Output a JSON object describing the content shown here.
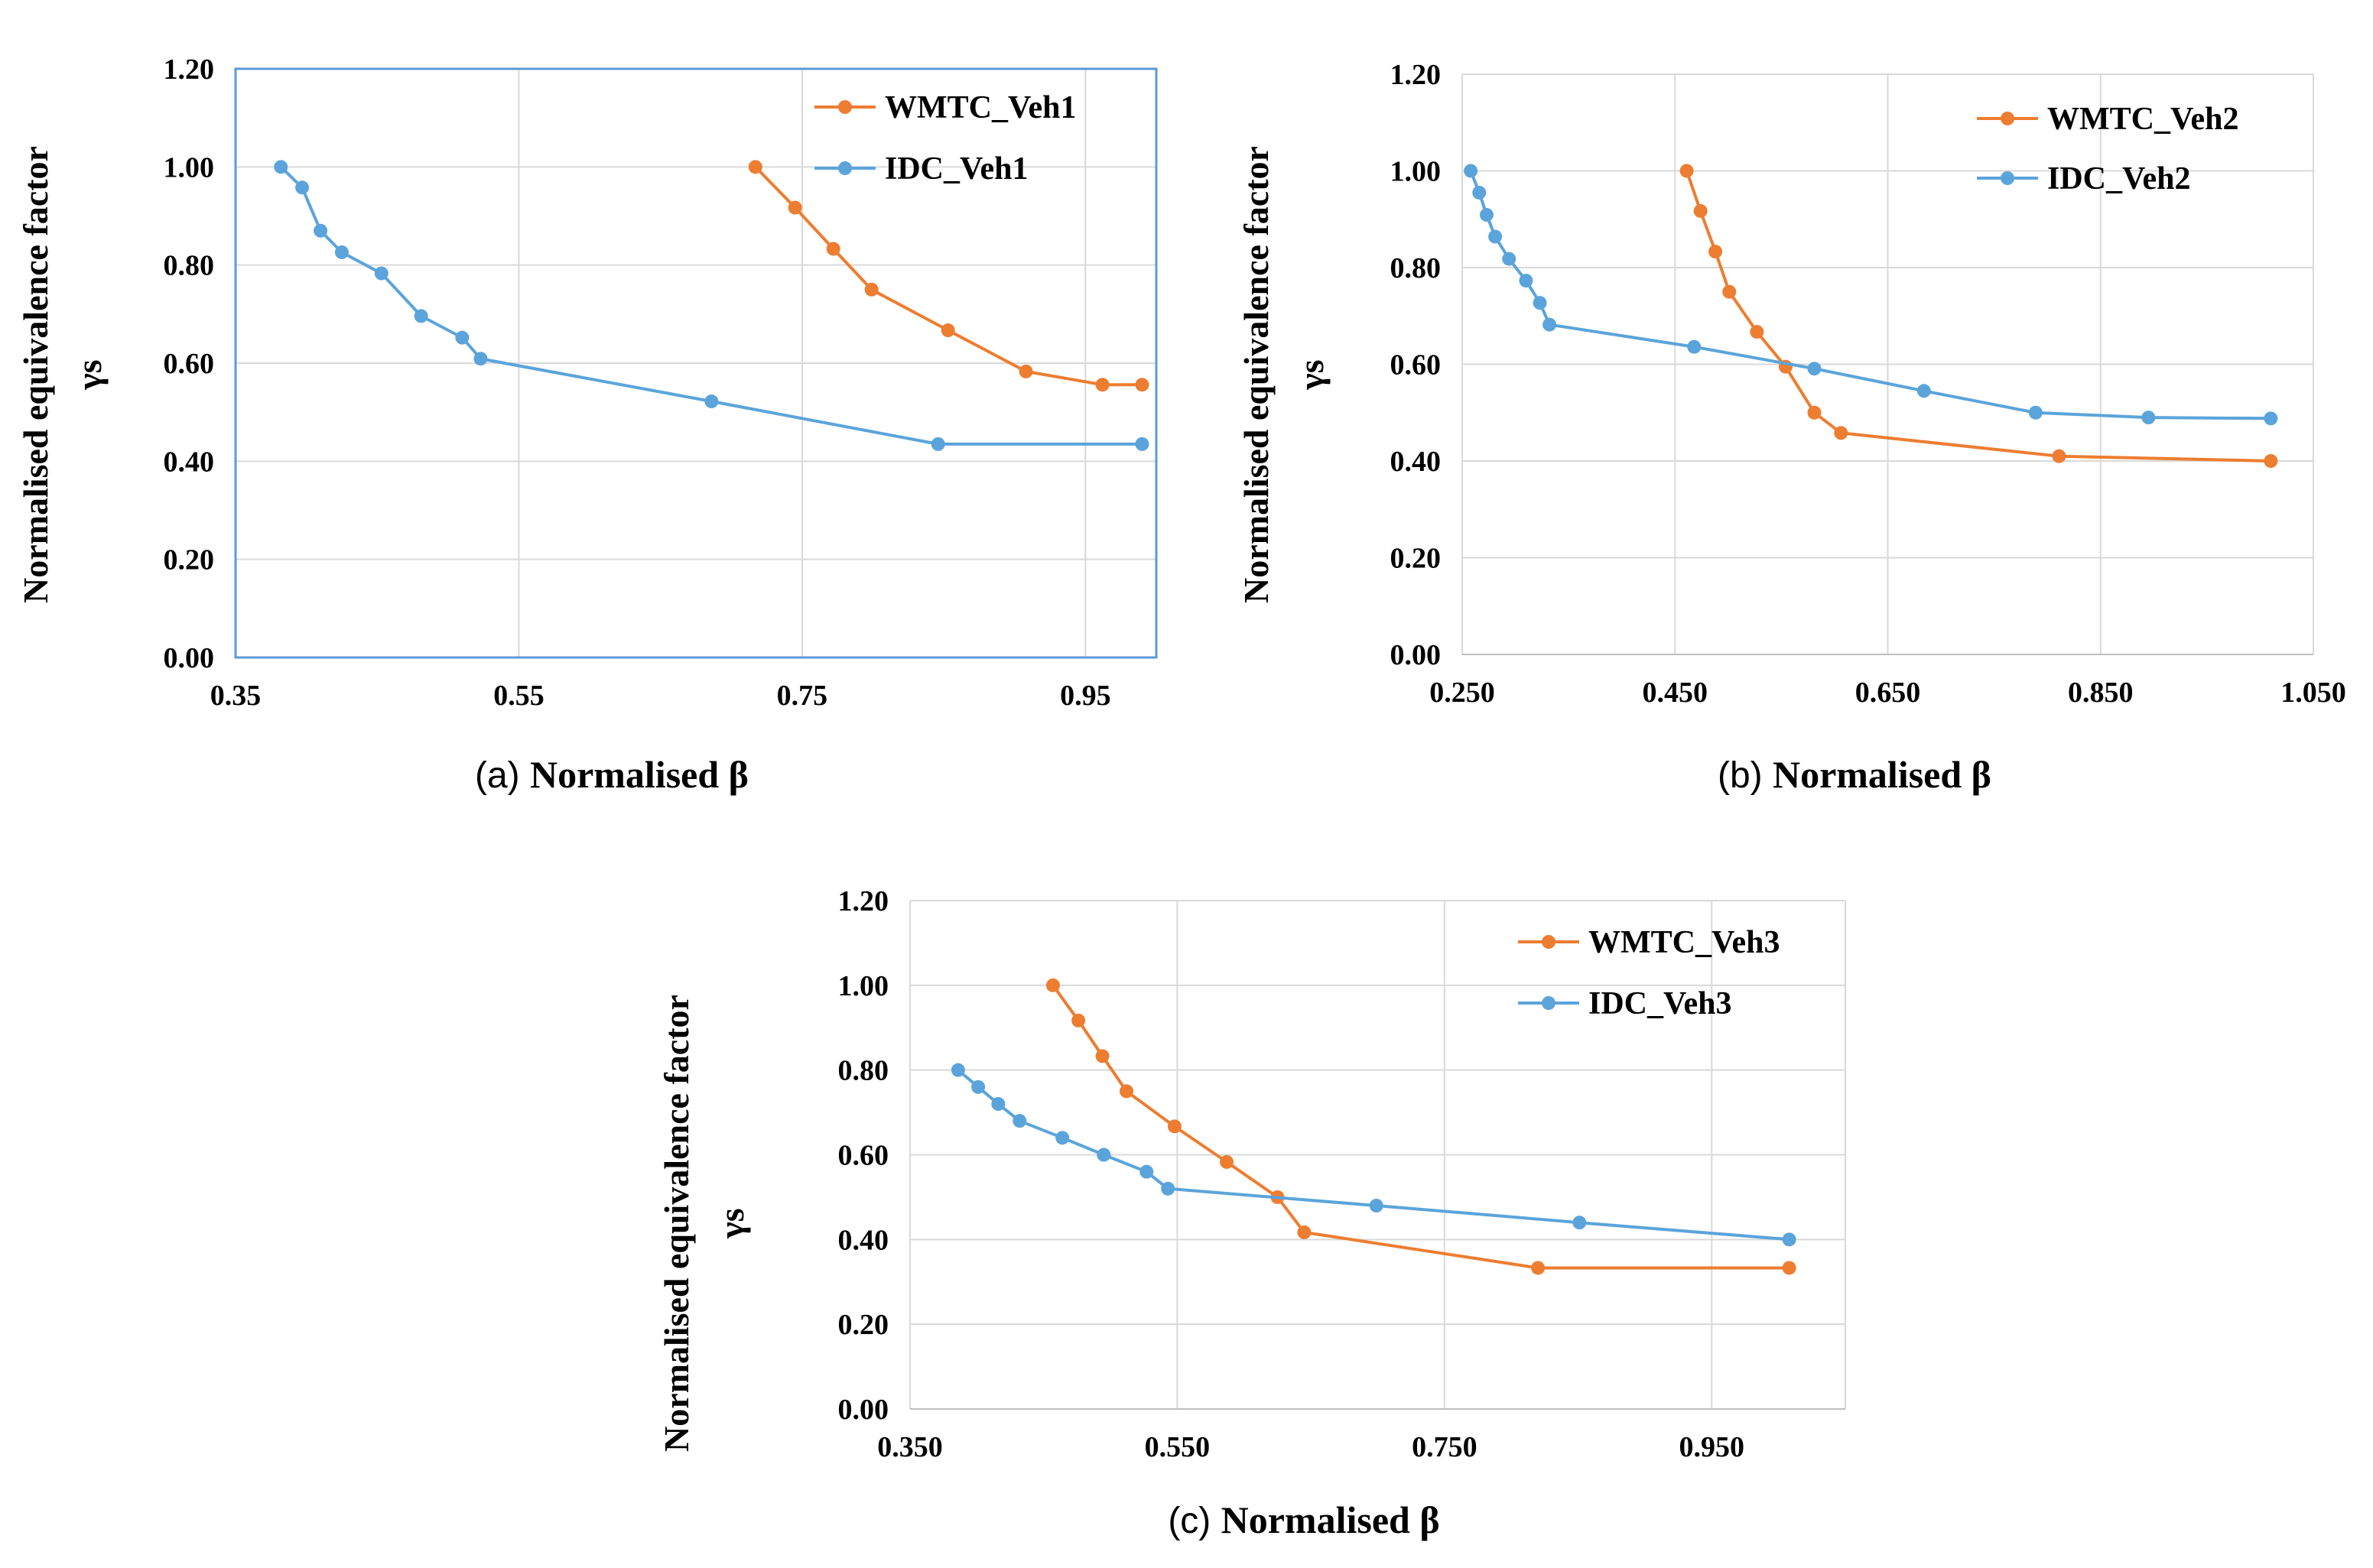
{
  "colors": {
    "wmtc": "#ED7D31",
    "idc": "#5BA4DB",
    "frame": "#5B9BD5",
    "grid": "#D9D9D9"
  },
  "chart_data": [
    {
      "type": "line",
      "panel": "(a)",
      "xlabel": "Normalised β",
      "ylabel_line1": "Normalised equivalence factor",
      "ylabel_line2": "γs",
      "xlim": [
        0.35,
        1.0
      ],
      "ylim": [
        0.0,
        1.2
      ],
      "xticks": [
        0.35,
        0.55,
        0.75,
        0.95
      ],
      "xtick_labels": [
        "0.35",
        "0.55",
        "0.75",
        "0.95"
      ],
      "yticks": [
        0.0,
        0.2,
        0.4,
        0.6,
        0.8,
        1.0,
        1.2
      ],
      "ytick_labels": [
        "0.00",
        "0.20",
        "0.40",
        "0.60",
        "0.80",
        "1.00",
        "1.20"
      ],
      "legend_position": "top-right",
      "series": [
        {
          "name": "WMTC_Veh1",
          "color": "#ED7D31",
          "x": [
            0.717,
            0.745,
            0.772,
            0.799,
            0.853,
            0.908,
            0.962,
            0.99
          ],
          "y": [
            1.0,
            0.917,
            0.833,
            0.75,
            0.667,
            0.583,
            0.556,
            0.556
          ]
        },
        {
          "name": "IDC_Veh1",
          "color": "#5BA4DB",
          "x": [
            0.382,
            0.397,
            0.41,
            0.425,
            0.453,
            0.481,
            0.51,
            0.523,
            0.686,
            0.846,
            0.99
          ],
          "y": [
            1.0,
            0.958,
            0.87,
            0.826,
            0.783,
            0.696,
            0.652,
            0.609,
            0.522,
            0.435,
            0.435
          ]
        }
      ]
    },
    {
      "type": "line",
      "panel": "(b)",
      "xlabel": "Normalised β",
      "ylabel_line1": "Normalised equivalence factor",
      "ylabel_line2": "γs",
      "xlim": [
        0.25,
        1.05
      ],
      "ylim": [
        0.0,
        1.2
      ],
      "xticks": [
        0.25,
        0.45,
        0.65,
        0.85,
        1.05
      ],
      "xtick_labels": [
        "0.250",
        "0.450",
        "0.650",
        "0.850",
        "1.050"
      ],
      "yticks": [
        0.0,
        0.2,
        0.4,
        0.6,
        0.8,
        1.0,
        1.2
      ],
      "ytick_labels": [
        "0.00",
        "0.20",
        "0.40",
        "0.60",
        "0.80",
        "1.00",
        "1.20"
      ],
      "legend_position": "top-right",
      "series": [
        {
          "name": "WMTC_Veh2",
          "color": "#ED7D31",
          "x": [
            0.461,
            0.474,
            0.488,
            0.501,
            0.527,
            0.554,
            0.581,
            0.606,
            0.811,
            1.01
          ],
          "y": [
            1.0,
            0.917,
            0.833,
            0.75,
            0.667,
            0.595,
            0.5,
            0.458,
            0.41,
            0.4
          ]
        },
        {
          "name": "IDC_Veh2",
          "color": "#5BA4DB",
          "x": [
            0.258,
            0.266,
            0.273,
            0.281,
            0.294,
            0.31,
            0.323,
            0.332,
            0.468,
            0.581,
            0.684,
            0.789,
            0.895,
            1.01
          ],
          "y": [
            1.0,
            0.955,
            0.909,
            0.864,
            0.818,
            0.773,
            0.727,
            0.682,
            0.636,
            0.591,
            0.545,
            0.5,
            0.49,
            0.488
          ]
        }
      ]
    },
    {
      "type": "line",
      "panel": "(c)",
      "xlabel": "Normalised β",
      "ylabel_line1": "Normalised equivalence factor",
      "ylabel_line2": "γs",
      "xlim": [
        0.35,
        1.05
      ],
      "ylim": [
        0.0,
        1.2
      ],
      "xticks": [
        0.35,
        0.55,
        0.75,
        0.95
      ],
      "xtick_labels": [
        "0.350",
        "0.550",
        "0.750",
        "0.950"
      ],
      "yticks": [
        0.0,
        0.2,
        0.4,
        0.6,
        0.8,
        1.0,
        1.2
      ],
      "ytick_labels": [
        "0.00",
        "0.20",
        "0.40",
        "0.60",
        "0.80",
        "1.00",
        "1.20"
      ],
      "legend_position": "top-right",
      "series": [
        {
          "name": "WMTC_Veh3",
          "color": "#ED7D31",
          "x": [
            0.457,
            0.476,
            0.494,
            0.512,
            0.548,
            0.587,
            0.625,
            0.645,
            0.82,
            1.008
          ],
          "y": [
            1.0,
            0.917,
            0.833,
            0.75,
            0.667,
            0.583,
            0.5,
            0.417,
            0.333,
            0.333
          ]
        },
        {
          "name": "IDC_Veh3",
          "color": "#5BA4DB",
          "x": [
            0.386,
            0.401,
            0.416,
            0.432,
            0.464,
            0.495,
            0.527,
            0.543,
            0.699,
            0.851,
            1.008
          ],
          "y": [
            0.8,
            0.76,
            0.72,
            0.68,
            0.64,
            0.6,
            0.56,
            0.52,
            0.48,
            0.44,
            0.4
          ]
        }
      ]
    }
  ]
}
